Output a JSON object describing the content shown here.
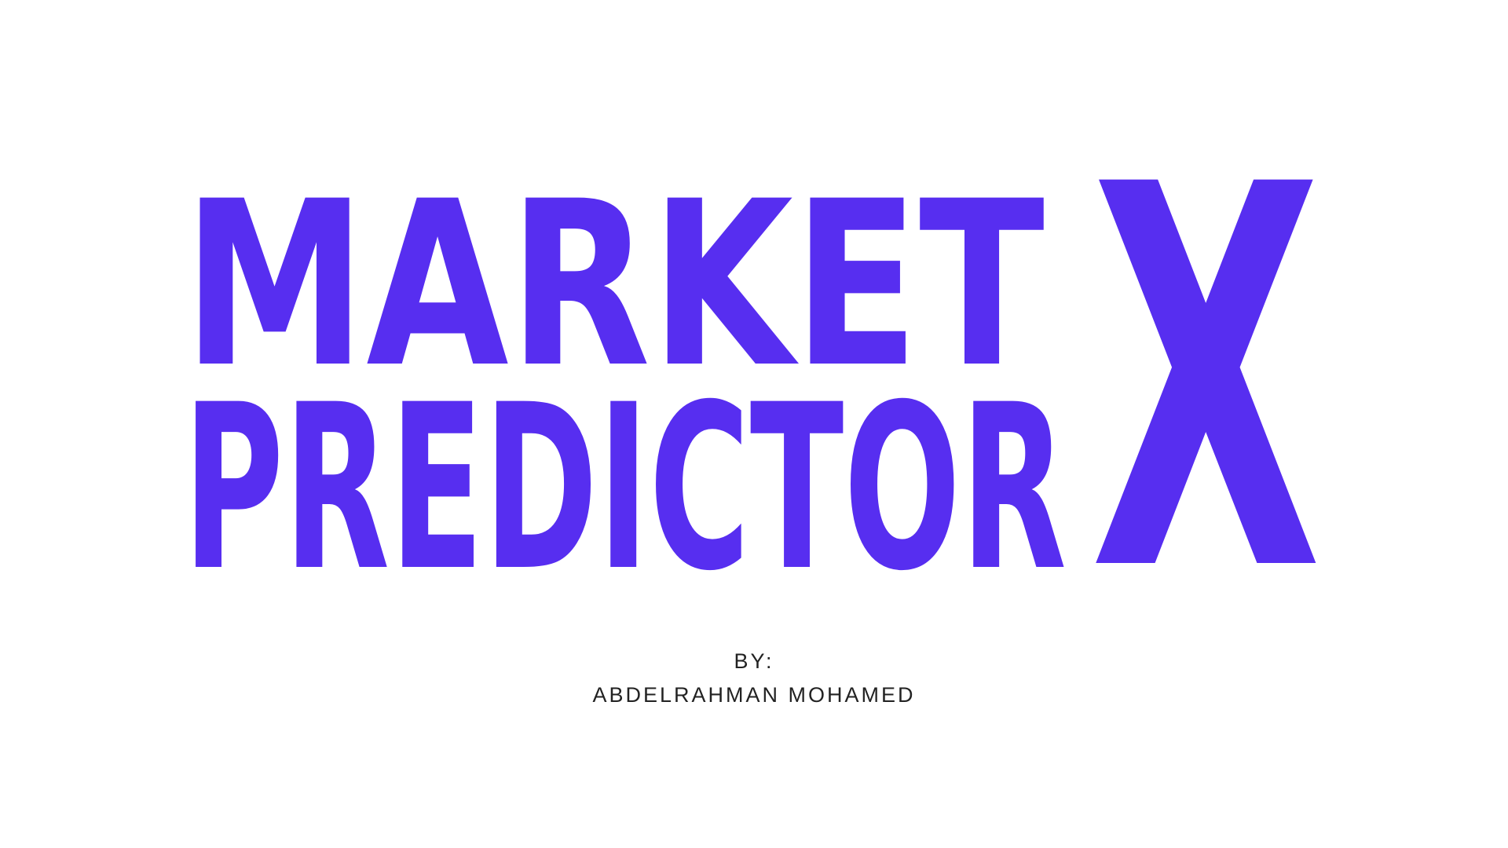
{
  "title": {
    "line1": "MARKET",
    "line2": "PREDICTOR",
    "big_letter": "X",
    "color": "#572ef0"
  },
  "byline": {
    "label": "BY:",
    "author": "ABDELRAHMAN MOHAMED",
    "color": "#222222"
  }
}
